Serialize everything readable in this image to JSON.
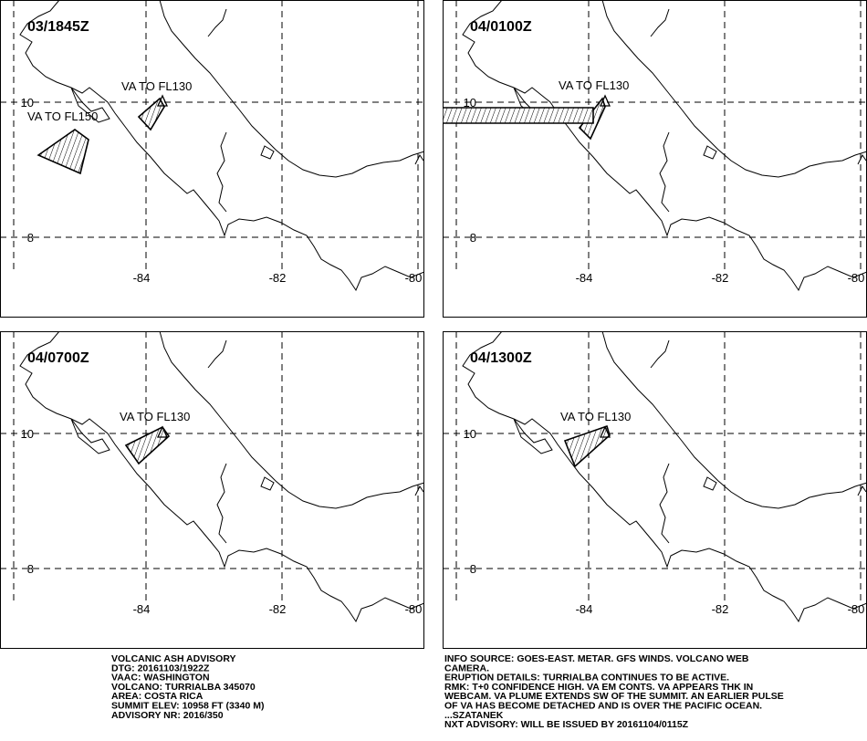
{
  "panels": [
    {
      "time": "03/1845Z",
      "labels": [
        "VA TO FL130",
        "VA TO FL150"
      ]
    },
    {
      "time": "04/0100Z",
      "labels": [
        "VA TO FL130"
      ]
    },
    {
      "time": "04/0700Z",
      "labels": [
        "VA TO FL130"
      ]
    },
    {
      "time": "04/1300Z",
      "labels": [
        "VA TO FL130"
      ]
    }
  ],
  "latitude_labels": [
    "10",
    "8"
  ],
  "longitude_labels": [
    "-84",
    "-82",
    "-80"
  ],
  "advisory": [
    "VOLCANIC ASH ADVISORY",
    "DTG: 20161103/1922Z",
    "VAAC: WASHINGTON",
    "VOLCANO: TURRIALBA 345070",
    "AREA: COSTA RICA",
    "SUMMIT ELEV: 10958 FT (3340 M)",
    "ADVISORY NR: 2016/350"
  ],
  "remarks": [
    "INFO SOURCE: GOES-EAST. METAR. GFS WINDS. VOLCANO WEB",
    "CAMERA.",
    "ERUPTION DETAILS: TURRIALBA CONTINUES TO BE ACTIVE.",
    "RMK: T+0 CONFIDENCE HIGH. VA EM CONTS. VA APPEARS THK IN",
    "WEBCAM. VA PLUME EXTENDS SW OF THE SUMMIT. AN EARLIER PULSE",
    "OF VA HAS BECOME DETACHED AND IS OVER THE PACIFIC OCEAN.",
    "...SZATANEK",
    "NXT ADVISORY: WILL BE ISSUED BY 20161104/0115Z"
  ]
}
